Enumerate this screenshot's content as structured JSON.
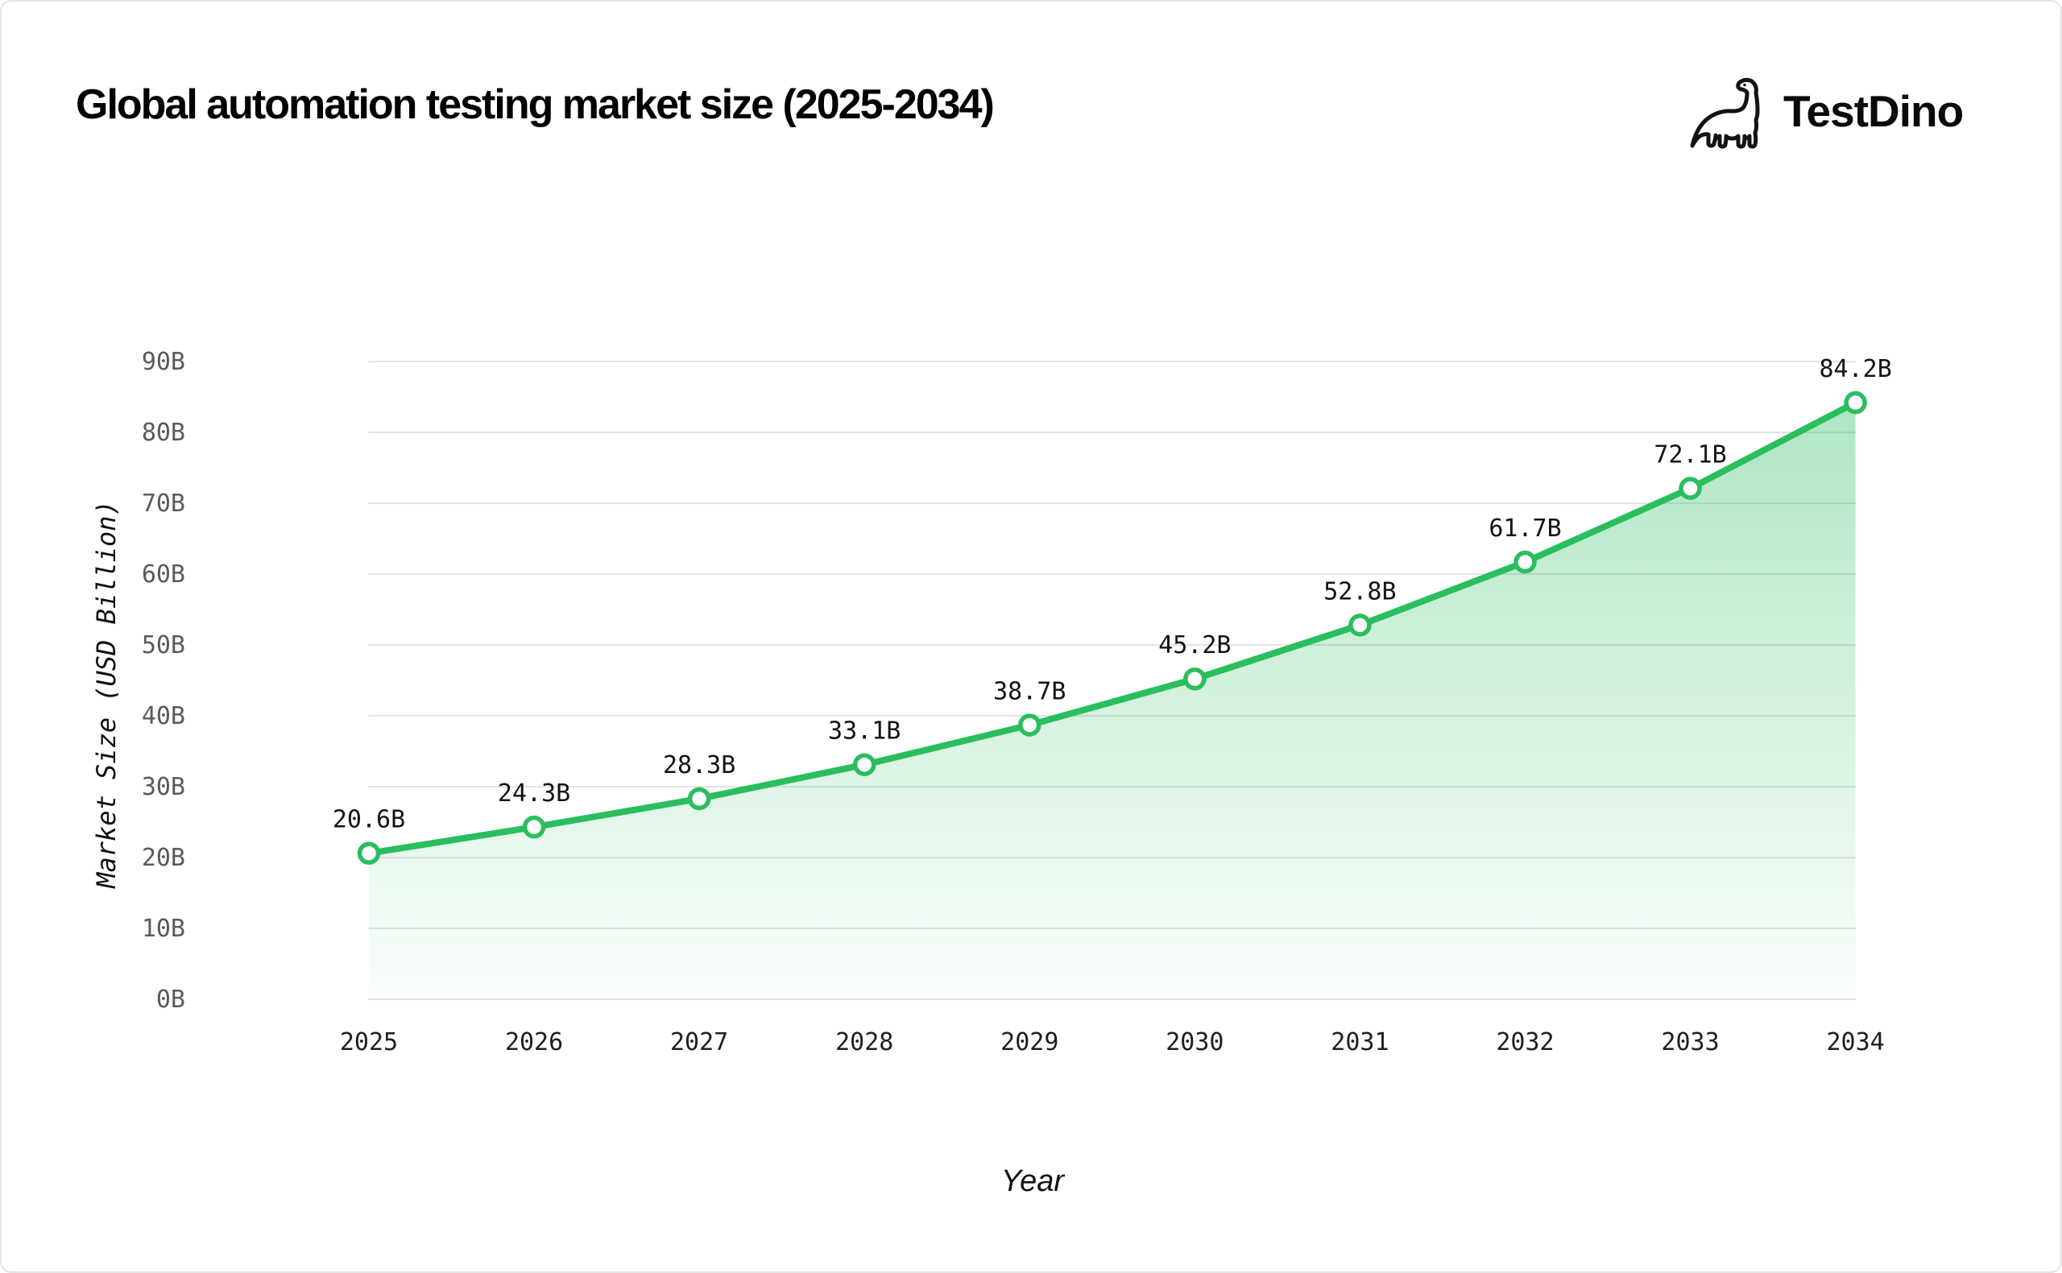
{
  "header": {
    "title": "Global automation testing market size (2025-2034)",
    "brand": "TestDino"
  },
  "chart_data": {
    "type": "area",
    "title": "Global automation testing market size (2025-2034)",
    "x": [
      "2025",
      "2026",
      "2027",
      "2028",
      "2029",
      "2030",
      "2031",
      "2032",
      "2033",
      "2034"
    ],
    "series": [
      {
        "name": "Market Size",
        "values": [
          20.6,
          24.3,
          28.3,
          33.1,
          38.7,
          45.2,
          52.8,
          61.7,
          72.1,
          84.2
        ]
      }
    ],
    "point_labels": [
      "20.6B",
      "24.3B",
      "28.3B",
      "33.1B",
      "38.7B",
      "45.2B",
      "52.8B",
      "61.7B",
      "72.1B",
      "84.2B"
    ],
    "xlabel": "Year",
    "ylabel": "Market Size (USD Billion)",
    "ylim": [
      0,
      90
    ],
    "yticks": [
      0,
      10,
      20,
      30,
      40,
      50,
      60,
      70,
      80,
      90
    ],
    "ytick_labels": [
      "0B",
      "10B",
      "20B",
      "30B",
      "40B",
      "50B",
      "60B",
      "70B",
      "80B",
      "90B"
    ],
    "grid": "horizontal",
    "legend": "none",
    "colors": {
      "line": "#2abe5e",
      "marker_fill": "#ffffff",
      "area_top": "rgba(41,189,92,0.38)",
      "area_bottom": "rgba(41,189,92,0.02)",
      "gridline": "#e3e3e3",
      "ytick_text": "#5a5a5a",
      "xtick_text": "#1f1f1f",
      "point_label_text": "#141414",
      "axis_title_text": "#111111"
    }
  }
}
